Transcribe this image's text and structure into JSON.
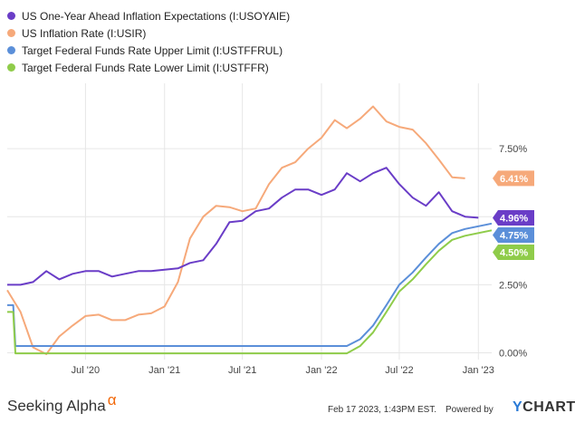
{
  "legend": [
    {
      "label": "US One-Year Ahead Inflation Expectations (I:USOYAIE)",
      "color": "#6a3dc7"
    },
    {
      "label": "US Inflation Rate (I:USIR)",
      "color": "#f6a97a"
    },
    {
      "label": "Target Federal Funds Rate Upper Limit (I:USTFFRUL)",
      "color": "#5b8fd9"
    },
    {
      "label": "Target Federal Funds Rate Lower Limit (I:USTFFR)",
      "color": "#8fcc4a"
    }
  ],
  "footer": {
    "brand": "Seeking Alpha",
    "brand_mark": "α",
    "date": "Feb 17 2023, 1:43PM EST.",
    "powered_by": "Powered by",
    "ycharts_y": "Y",
    "ycharts_rest": "CHARTS"
  },
  "chart_data": {
    "type": "line",
    "x_tick_labels": [
      "Jul '20",
      "Jan '21",
      "Jul '21",
      "Jan '22",
      "Jul '22",
      "Jan '23"
    ],
    "x_ticks": [
      "2020-07-01",
      "2021-01-01",
      "2021-07-01",
      "2022-01-01",
      "2022-07-01",
      "2023-01-01"
    ],
    "y_tick_labels": [
      "0.00%",
      "2.50%",
      "5.00%",
      "7.50%"
    ],
    "y_ticks": [
      0,
      2.5,
      5.0,
      7.5
    ],
    "ylim": [
      -0.25,
      9.9
    ],
    "xlim": [
      "2020-01-01",
      "2023-02-01"
    ],
    "grid": true,
    "end_labels": [
      "6.41%",
      "4.96%",
      "4.75%",
      "4.50%"
    ],
    "series": [
      {
        "name": "US One-Year Ahead Inflation Expectations (I:USOYAIE)",
        "color": "#6a3dc7",
        "end_label": "4.96%",
        "points": [
          [
            "2020-01",
            2.5
          ],
          [
            "2020-02",
            2.5
          ],
          [
            "2020-03",
            2.6
          ],
          [
            "2020-04",
            3.0
          ],
          [
            "2020-05",
            2.7
          ],
          [
            "2020-06",
            2.9
          ],
          [
            "2020-07",
            3.0
          ],
          [
            "2020-08",
            3.0
          ],
          [
            "2020-09",
            2.8
          ],
          [
            "2020-10",
            2.9
          ],
          [
            "2020-11",
            3.0
          ],
          [
            "2020-12",
            3.0
          ],
          [
            "2021-01",
            3.05
          ],
          [
            "2021-02",
            3.1
          ],
          [
            "2021-03",
            3.3
          ],
          [
            "2021-04",
            3.4
          ],
          [
            "2021-05",
            4.0
          ],
          [
            "2021-06",
            4.8
          ],
          [
            "2021-07",
            4.85
          ],
          [
            "2021-08",
            5.2
          ],
          [
            "2021-09",
            5.3
          ],
          [
            "2021-10",
            5.7
          ],
          [
            "2021-11",
            6.0
          ],
          [
            "2021-12",
            6.0
          ],
          [
            "2022-01",
            5.8
          ],
          [
            "2022-02",
            6.0
          ],
          [
            "2022-03",
            6.6
          ],
          [
            "2022-04",
            6.3
          ],
          [
            "2022-05",
            6.6
          ],
          [
            "2022-06",
            6.8
          ],
          [
            "2022-07",
            6.2
          ],
          [
            "2022-08",
            5.7
          ],
          [
            "2022-09",
            5.4
          ],
          [
            "2022-10",
            5.9
          ],
          [
            "2022-11",
            5.2
          ],
          [
            "2022-12",
            5.0
          ],
          [
            "2023-01",
            4.96
          ]
        ]
      },
      {
        "name": "US Inflation Rate (I:USIR)",
        "color": "#f6a97a",
        "end_label": "6.41%",
        "points": [
          [
            "2020-01",
            2.3
          ],
          [
            "2020-02",
            1.5
          ],
          [
            "2020-03",
            0.2
          ],
          [
            "2020-04",
            -0.05
          ],
          [
            "2020-05",
            0.6
          ],
          [
            "2020-06",
            1.0
          ],
          [
            "2020-07",
            1.35
          ],
          [
            "2020-08",
            1.4
          ],
          [
            "2020-09",
            1.2
          ],
          [
            "2020-10",
            1.2
          ],
          [
            "2020-11",
            1.4
          ],
          [
            "2020-12",
            1.45
          ],
          [
            "2021-01",
            1.7
          ],
          [
            "2021-02",
            2.6
          ],
          [
            "2021-03",
            4.2
          ],
          [
            "2021-04",
            5.0
          ],
          [
            "2021-05",
            5.4
          ],
          [
            "2021-06",
            5.35
          ],
          [
            "2021-07",
            5.2
          ],
          [
            "2021-08",
            5.3
          ],
          [
            "2021-09",
            6.2
          ],
          [
            "2021-10",
            6.8
          ],
          [
            "2021-11",
            7.0
          ],
          [
            "2021-12",
            7.5
          ],
          [
            "2022-01",
            7.9
          ],
          [
            "2022-02",
            8.55
          ],
          [
            "2022-03",
            8.25
          ],
          [
            "2022-04",
            8.6
          ],
          [
            "2022-05",
            9.05
          ],
          [
            "2022-06",
            8.5
          ],
          [
            "2022-07",
            8.3
          ],
          [
            "2022-08",
            8.2
          ],
          [
            "2022-09",
            7.7
          ],
          [
            "2022-10",
            7.1
          ],
          [
            "2022-11",
            6.45
          ],
          [
            "2022-12",
            6.41
          ]
        ]
      },
      {
        "name": "Target Federal Funds Rate Upper Limit (I:USTFFRUL)",
        "color": "#5b8fd9",
        "end_label": "4.75%",
        "points": [
          [
            "2020-01",
            1.75
          ],
          [
            "2020-01-15",
            1.75
          ],
          [
            "2020-01-20",
            0.25
          ],
          [
            "2022-03",
            0.25
          ],
          [
            "2022-04",
            0.5
          ],
          [
            "2022-05",
            1.0
          ],
          [
            "2022-06",
            1.75
          ],
          [
            "2022-07",
            2.5
          ],
          [
            "2022-08",
            2.95
          ],
          [
            "2022-09",
            3.5
          ],
          [
            "2022-10",
            4.0
          ],
          [
            "2022-11",
            4.4
          ],
          [
            "2022-12",
            4.55
          ],
          [
            "2023-02",
            4.75
          ]
        ]
      },
      {
        "name": "Target Federal Funds Rate Lower Limit (I:USTFFR)",
        "color": "#8fcc4a",
        "end_label": "4.50%",
        "points": [
          [
            "2020-01",
            1.5
          ],
          [
            "2020-01-15",
            1.5
          ],
          [
            "2020-01-20",
            -0.02
          ],
          [
            "2022-03",
            -0.02
          ],
          [
            "2022-04",
            0.25
          ],
          [
            "2022-05",
            0.75
          ],
          [
            "2022-06",
            1.5
          ],
          [
            "2022-07",
            2.25
          ],
          [
            "2022-08",
            2.7
          ],
          [
            "2022-09",
            3.25
          ],
          [
            "2022-10",
            3.75
          ],
          [
            "2022-11",
            4.15
          ],
          [
            "2022-12",
            4.3
          ],
          [
            "2023-02",
            4.5
          ]
        ]
      }
    ]
  }
}
